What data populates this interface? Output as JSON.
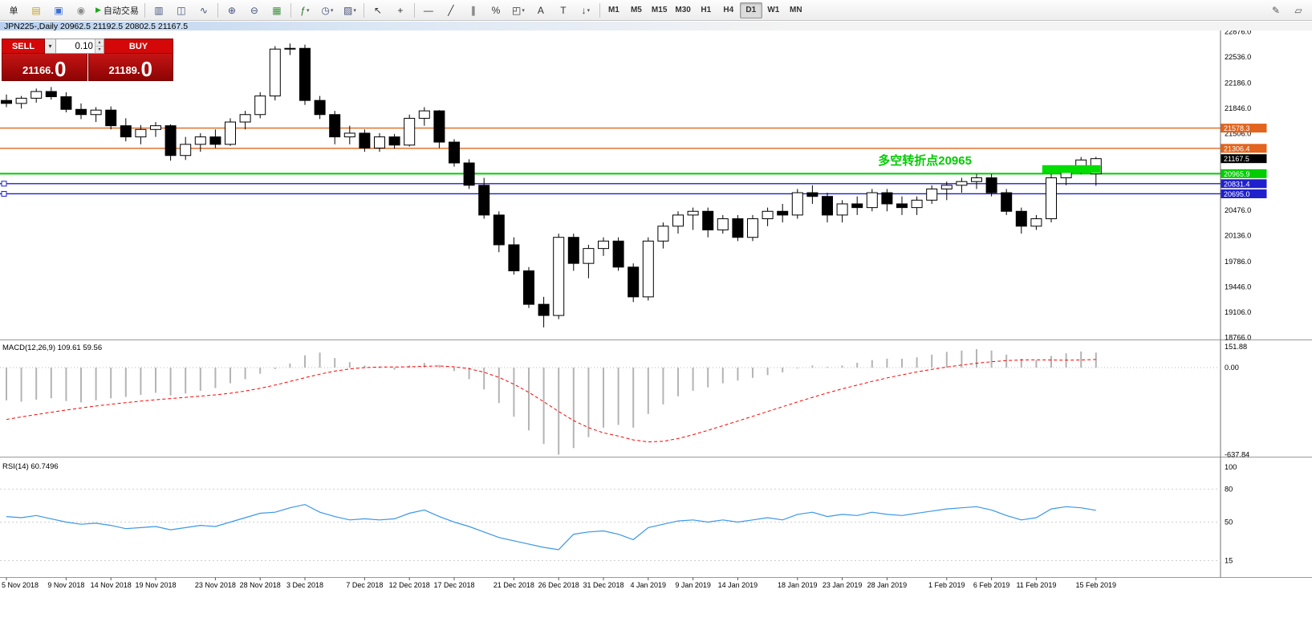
{
  "toolbar": {
    "items": [
      {
        "name": "order-button",
        "label": "单"
      },
      {
        "name": "new-order-icon",
        "glyph": "▤",
        "color": "#c79f1d"
      },
      {
        "name": "chart-window-icon",
        "glyph": "▣",
        "color": "#3b6fd6"
      },
      {
        "name": "info-icon",
        "glyph": "◉",
        "color": "#8a8a8a"
      },
      {
        "name": "autotrade-button",
        "label": "自动交易",
        "play": "▶",
        "play_color": "#18a818"
      },
      {
        "sep": true
      },
      {
        "name": "bars-chart-icon",
        "glyph": "▥",
        "color": "#44507a"
      },
      {
        "name": "candlestick-chart-icon",
        "glyph": "◫",
        "color": "#44507a"
      },
      {
        "name": "line-chart-icon",
        "glyph": "∿",
        "color": "#44507a"
      },
      {
        "sep": true
      },
      {
        "name": "zoom-in-icon",
        "glyph": "⊕",
        "color": "#44507a"
      },
      {
        "name": "zoom-out-icon",
        "glyph": "⊖",
        "color": "#44507a"
      },
      {
        "name": "tile-windows-icon",
        "glyph": "▦",
        "color": "#3f8f3f"
      },
      {
        "sep": true
      },
      {
        "name": "indicators-icon",
        "glyph": "ƒ",
        "color": "#2f6f2f",
        "caret": true
      },
      {
        "name": "period-icon",
        "glyph": "◷",
        "color": "#44507a",
        "caret": true
      },
      {
        "name": "template-icon",
        "glyph": "▨",
        "color": "#44507a",
        "caret": true
      },
      {
        "sep": true
      },
      {
        "name": "cursor-icon",
        "glyph": "↖",
        "color": "#333"
      },
      {
        "name": "crosshair-icon",
        "glyph": "+",
        "color": "#333"
      },
      {
        "sep": true
      },
      {
        "name": "hline-icon",
        "glyph": "—",
        "color": "#333"
      },
      {
        "name": "trendline-icon",
        "glyph": "╱",
        "color": "#333"
      },
      {
        "name": "channel-icon",
        "glyph": "∥",
        "color": "#333"
      },
      {
        "name": "fibonacci-icon",
        "glyph": "%",
        "color": "#333"
      },
      {
        "name": "shapes-icon",
        "glyph": "◰",
        "color": "#333",
        "caret": true
      },
      {
        "name": "text-icon",
        "glyph": "A",
        "color": "#333"
      },
      {
        "name": "label-icon",
        "glyph": "T",
        "color": "#333"
      },
      {
        "name": "arrows-icon",
        "glyph": "↓",
        "color": "#333",
        "caret": true
      },
      {
        "sep": true
      }
    ],
    "timeframes": [
      "M1",
      "M5",
      "M15",
      "M30",
      "H1",
      "H4",
      "D1",
      "W1",
      "MN"
    ],
    "active_timeframe": "D1",
    "right_items": [
      {
        "name": "pencil-icon",
        "glyph": "✎",
        "color": "#555"
      },
      {
        "name": "layout-icon",
        "glyph": "▱",
        "color": "#555"
      }
    ]
  },
  "chart": {
    "title_line": "JPN225-,Daily 20962.5 21192.5 20802.5 21167.5"
  },
  "trade_panel": {
    "sell_label": "SELL",
    "buy_label": "BUY",
    "volume": "0.10",
    "dropdown_glyph": "▾",
    "spin_up": "▴",
    "spin_down": "▾",
    "sell_price_small": "21166.",
    "sell_price_big": "0",
    "buy_price_small": "21189.",
    "buy_price_big": "0"
  },
  "chart_data": {
    "type": "candlestick",
    "symbol": "JPN225-",
    "period": "Daily",
    "ohlc_current": {
      "open": 20962.5,
      "high": 21192.5,
      "low": 20802.5,
      "close": 21167.5
    },
    "grid": false,
    "candles": [
      [
        21950,
        22030,
        21860,
        21910
      ],
      [
        21910,
        22010,
        21840,
        21980
      ],
      [
        21980,
        22110,
        21920,
        22070
      ],
      [
        22070,
        22130,
        21960,
        22000
      ],
      [
        22000,
        22060,
        21790,
        21830
      ],
      [
        21830,
        21910,
        21700,
        21760
      ],
      [
        21760,
        21860,
        21660,
        21820
      ],
      [
        21820,
        21870,
        21560,
        21610
      ],
      [
        21610,
        21710,
        21400,
        21460
      ],
      [
        21460,
        21620,
        21360,
        21560
      ],
      [
        21560,
        21660,
        21460,
        21610
      ],
      [
        21610,
        21630,
        21140,
        21210
      ],
      [
        21210,
        21460,
        21150,
        21360
      ],
      [
        21360,
        21510,
        21260,
        21460
      ],
      [
        21460,
        21560,
        21310,
        21360
      ],
      [
        21360,
        21710,
        21340,
        21660
      ],
      [
        21660,
        21810,
        21560,
        21760
      ],
      [
        21760,
        22060,
        21710,
        22010
      ],
      [
        22010,
        22680,
        21950,
        22640
      ],
      [
        22640,
        22715,
        22560,
        22650
      ],
      [
        22650,
        22700,
        21890,
        21950
      ],
      [
        21950,
        22010,
        21700,
        21760
      ],
      [
        21760,
        21810,
        21360,
        21460
      ],
      [
        21460,
        21610,
        21360,
        21510
      ],
      [
        21510,
        21560,
        21260,
        21310
      ],
      [
        21310,
        21510,
        21260,
        21460
      ],
      [
        21460,
        21500,
        21300,
        21350
      ],
      [
        21350,
        21760,
        21330,
        21710
      ],
      [
        21710,
        21860,
        21610,
        21810
      ],
      [
        21810,
        21820,
        21310,
        21390
      ],
      [
        21390,
        21430,
        21060,
        21110
      ],
      [
        21110,
        21160,
        20760,
        20810
      ],
      [
        20810,
        20910,
        20360,
        20410
      ],
      [
        20410,
        20460,
        19910,
        20010
      ],
      [
        20010,
        20110,
        19610,
        19660
      ],
      [
        19660,
        19710,
        19160,
        19210
      ],
      [
        19210,
        19310,
        18900,
        19060
      ],
      [
        19060,
        20160,
        19010,
        20110
      ],
      [
        20110,
        20160,
        19660,
        19760
      ],
      [
        19760,
        20010,
        19560,
        19960
      ],
      [
        19960,
        20110,
        19860,
        20060
      ],
      [
        20060,
        20110,
        19660,
        19710
      ],
      [
        19710,
        19760,
        19240,
        19310
      ],
      [
        19310,
        20110,
        19260,
        20060
      ],
      [
        20060,
        20310,
        19960,
        20260
      ],
      [
        20260,
        20460,
        20160,
        20410
      ],
      [
        20410,
        20510,
        20210,
        20460
      ],
      [
        20460,
        20510,
        20110,
        20210
      ],
      [
        20210,
        20410,
        20160,
        20360
      ],
      [
        20360,
        20410,
        20060,
        20110
      ],
      [
        20110,
        20410,
        20060,
        20360
      ],
      [
        20360,
        20510,
        20260,
        20460
      ],
      [
        20460,
        20560,
        20310,
        20410
      ],
      [
        20410,
        20760,
        20360,
        20710
      ],
      [
        20710,
        20810,
        20560,
        20660
      ],
      [
        20660,
        20710,
        20310,
        20410
      ],
      [
        20410,
        20610,
        20310,
        20560
      ],
      [
        20560,
        20660,
        20410,
        20510
      ],
      [
        20510,
        20760,
        20460,
        20710
      ],
      [
        20710,
        20760,
        20460,
        20560
      ],
      [
        20560,
        20660,
        20410,
        20510
      ],
      [
        20510,
        20660,
        20410,
        20610
      ],
      [
        20610,
        20810,
        20560,
        20760
      ],
      [
        20760,
        20860,
        20610,
        20810
      ],
      [
        20810,
        20910,
        20710,
        20860
      ],
      [
        20860,
        20960,
        20760,
        20910
      ],
      [
        20910,
        20960,
        20660,
        20710
      ],
      [
        20710,
        20760,
        20410,
        20460
      ],
      [
        20460,
        20510,
        20160,
        20260
      ],
      [
        20260,
        20410,
        20210,
        20360
      ],
      [
        20360,
        20960,
        20310,
        20910
      ],
      [
        20910,
        21060,
        20810,
        21010
      ],
      [
        21010,
        21190,
        20960,
        21150
      ],
      [
        20962.5,
        21192.5,
        20802.5,
        21167.5
      ]
    ],
    "date_ticks": [
      {
        "i": 0,
        "t": "5 Nov 2018"
      },
      {
        "i": 4,
        "t": "9 Nov 2018"
      },
      {
        "i": 7,
        "t": "14 Nov 2018"
      },
      {
        "i": 10,
        "t": "19 Nov 2018"
      },
      {
        "i": 14,
        "t": "23 Nov 2018"
      },
      {
        "i": 17,
        "t": "28 Nov 2018"
      },
      {
        "i": 20,
        "t": "3 Dec 2018"
      },
      {
        "i": 24,
        "t": "7 Dec 2018"
      },
      {
        "i": 27,
        "t": "12 Dec 2018"
      },
      {
        "i": 30,
        "t": "17 Dec 2018"
      },
      {
        "i": 34,
        "t": "21 Dec 2018"
      },
      {
        "i": 37,
        "t": "26 Dec 2018"
      },
      {
        "i": 40,
        "t": "31 Dec 2018"
      },
      {
        "i": 43,
        "t": "4 Jan 2019"
      },
      {
        "i": 46,
        "t": "9 Jan 2019"
      },
      {
        "i": 49,
        "t": "14 Jan 2019"
      },
      {
        "i": 53,
        "t": "18 Jan 2019"
      },
      {
        "i": 56,
        "t": "23 Jan 2019"
      },
      {
        "i": 59,
        "t": "28 Jan 2019"
      },
      {
        "i": 63,
        "t": "1 Feb 2019"
      },
      {
        "i": 66,
        "t": "6 Feb 2019"
      },
      {
        "i": 69,
        "t": "11 Feb 2019"
      },
      {
        "i": 73,
        "t": "15 Feb 2019"
      }
    ],
    "price_axis_labels": [
      22876.0,
      22536.0,
      22186.0,
      21846.0,
      21506.0,
      20476.0,
      20136.0,
      19786.0,
      19446.0,
      19106.0,
      18766.0
    ],
    "levels": [
      {
        "price": 21578.3,
        "label": "21578.3",
        "color": "#e2641e",
        "kind": "hline"
      },
      {
        "price": 21306.4,
        "label": "21306.4",
        "color": "#e2641e",
        "kind": "hline"
      },
      {
        "price": 21167.5,
        "label": "21167.5",
        "color": "#000000",
        "kind": "price_tag",
        "line": false
      },
      {
        "price": 20965.9,
        "label": "20965.9",
        "color": "#00cc00",
        "kind": "hline",
        "width": 2
      },
      {
        "price": 20831.4,
        "label": "20831.4",
        "color": "#2020cc",
        "kind": "hline",
        "markers": true
      },
      {
        "price": 20695.0,
        "label": "20695.0",
        "color": "#2020cc",
        "kind": "hline",
        "markers": true
      }
    ],
    "zone": {
      "from_index": 69.4,
      "to_index": 73.3,
      "price_top": 21080,
      "price_bottom": 20975,
      "color": "#00dd00"
    },
    "annotation": {
      "text": "多空转折点20965",
      "index": 58.4,
      "price": 21090,
      "color": "#00cc00"
    },
    "macd": {
      "label": "MACD(12,26,9) 109.61 59.56",
      "params": "12,26,9",
      "current_macd": 109.61,
      "current_signal": 59.56,
      "axis_labels": [
        151.88,
        0.0,
        -637.84
      ],
      "hist": [
        -240,
        -250,
        -235,
        -225,
        -245,
        -255,
        -240,
        -225,
        -215,
        -200,
        -185,
        -205,
        -190,
        -170,
        -150,
        -115,
        -85,
        -45,
        -10,
        30,
        90,
        110,
        70,
        40,
        15,
        -5,
        -15,
        15,
        35,
        20,
        -25,
        -85,
        -160,
        -260,
        -360,
        -460,
        -560,
        -638,
        -590,
        -510,
        -440,
        -420,
        -440,
        -340,
        -270,
        -210,
        -170,
        -145,
        -115,
        -95,
        -75,
        -55,
        -35,
        -5,
        15,
        5,
        15,
        35,
        55,
        65,
        65,
        75,
        95,
        115,
        125,
        135,
        125,
        95,
        65,
        55,
        85,
        105,
        118,
        109.61
      ],
      "signal": [
        -380,
        -362,
        -344,
        -327,
        -311,
        -296,
        -282,
        -269,
        -257,
        -246,
        -236,
        -227,
        -218,
        -209,
        -200,
        -188,
        -172,
        -152,
        -128,
        -102,
        -74,
        -48,
        -26,
        -10,
        0,
        4,
        4,
        6,
        10,
        12,
        6,
        -8,
        -34,
        -72,
        -122,
        -182,
        -250,
        -322,
        -388,
        -440,
        -478,
        -502,
        -530,
        -545,
        -540,
        -520,
        -492,
        -460,
        -426,
        -392,
        -357,
        -322,
        -287,
        -252,
        -218,
        -186,
        -156,
        -128,
        -101,
        -76,
        -53,
        -32,
        -13,
        4,
        19,
        32,
        43,
        51,
        56,
        57,
        55,
        54,
        56,
        59.56
      ]
    },
    "rsi": {
      "label": "RSI(14) 60.7496",
      "period": 14,
      "current": 60.7496,
      "axis_labels": [
        100,
        80,
        50,
        15
      ],
      "level_lines": [
        80,
        50,
        15
      ],
      "values": [
        55,
        54,
        56,
        53,
        50,
        48,
        49,
        47,
        44,
        45,
        46,
        43,
        45,
        47,
        46,
        50,
        54,
        58,
        59,
        63,
        66,
        59,
        55,
        52,
        53,
        52,
        53,
        58,
        61,
        55,
        50,
        46,
        41,
        36,
        33,
        30,
        27,
        25,
        39,
        41,
        42,
        39,
        34,
        45,
        48,
        51,
        52,
        50,
        52,
        50,
        52,
        54,
        52,
        57,
        59,
        55,
        57,
        56,
        59,
        57,
        56,
        58,
        60,
        62,
        63,
        64,
        61,
        56,
        52,
        54,
        62,
        64,
        63,
        60.75
      ]
    },
    "colors": {
      "bull_fill": "#ffffff",
      "bear_fill": "#000000",
      "candle_stroke": "#000000",
      "macd_hist": "#b4b4b4",
      "macd_signal": "#ff0000",
      "rsi_line": "#3a97e8",
      "orange_level": "#e2641e",
      "green_level": "#00cc00",
      "blue_level": "#2020cc"
    }
  }
}
